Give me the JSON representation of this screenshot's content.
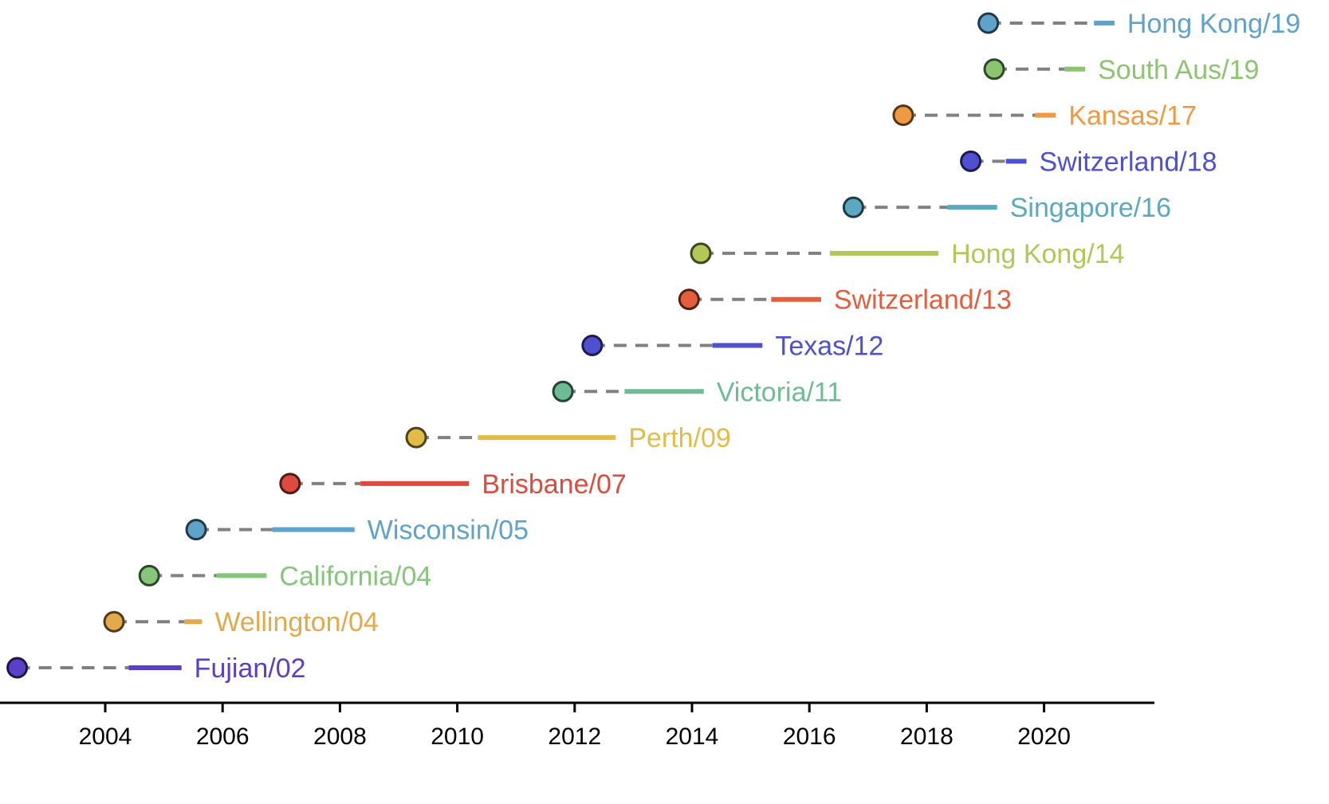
{
  "chart_data": {
    "type": "timeline",
    "title": "",
    "xlabel": "",
    "ylabel": "",
    "xlim": [
      2002.2,
      2021.9
    ],
    "grid": false,
    "legend": "none",
    "x_ticks": [
      2004,
      2006,
      2008,
      2010,
      2012,
      2014,
      2016,
      2018,
      2020
    ],
    "x_tick_labels": [
      "2004",
      "2006",
      "2008",
      "2010",
      "2012",
      "2014",
      "2016",
      "2018",
      "2020"
    ],
    "series": [
      {
        "label": "Fujian/02",
        "emergence": 2002.5,
        "period_start": 2004.4,
        "period_end": 2005.3,
        "color": "#5a3fc8"
      },
      {
        "label": "Wellington/04",
        "emergence": 2004.15,
        "period_start": 2005.35,
        "period_end": 2005.65,
        "color": "#e3a94b"
      },
      {
        "label": "California/04",
        "emergence": 2004.75,
        "period_start": 2005.9,
        "period_end": 2006.75,
        "color": "#86c67a"
      },
      {
        "label": "Wisconsin/05",
        "emergence": 2005.55,
        "period_start": 2006.85,
        "period_end": 2008.25,
        "color": "#5fa2ca"
      },
      {
        "label": "Brisbane/07",
        "emergence": 2007.15,
        "period_start": 2008.35,
        "period_end": 2010.2,
        "color": "#dd4b3e"
      },
      {
        "label": "Perth/09",
        "emergence": 2009.3,
        "period_start": 2010.35,
        "period_end": 2012.7,
        "color": "#e1bd48"
      },
      {
        "label": "Victoria/11",
        "emergence": 2011.8,
        "period_start": 2012.85,
        "period_end": 2014.2,
        "color": "#6dbc95"
      },
      {
        "label": "Texas/12",
        "emergence": 2012.3,
        "period_start": 2014.35,
        "period_end": 2015.2,
        "color": "#4e50d1"
      },
      {
        "label": "Switzerland/13",
        "emergence": 2013.95,
        "period_start": 2015.35,
        "period_end": 2016.2,
        "color": "#e45d3d"
      },
      {
        "label": "Hong Kong/14",
        "emergence": 2014.15,
        "period_start": 2016.35,
        "period_end": 2018.2,
        "color": "#b2c758"
      },
      {
        "label": "Singapore/16",
        "emergence": 2016.75,
        "period_start": 2018.35,
        "period_end": 2019.2,
        "color": "#5ba8bf"
      },
      {
        "label": "Switzerland/18",
        "emergence": 2018.75,
        "period_start": 2019.35,
        "period_end": 2019.7,
        "color": "#4e50d1"
      },
      {
        "label": "Kansas/17",
        "emergence": 2017.6,
        "period_start": 2019.85,
        "period_end": 2020.2,
        "color": "#ee9a42"
      },
      {
        "label": "South Aus/19",
        "emergence": 2019.15,
        "period_start": 2020.35,
        "period_end": 2020.7,
        "color": "#8cc46f"
      },
      {
        "label": "Hong Kong/19",
        "emergence": 2019.05,
        "period_start": 2020.85,
        "period_end": 2021.2,
        "color": "#5fa2ca"
      }
    ]
  }
}
